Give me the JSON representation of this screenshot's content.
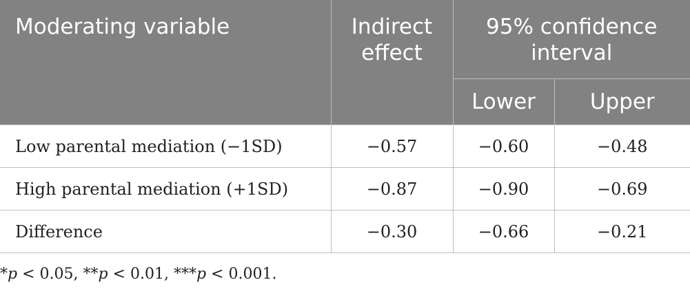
{
  "table": {
    "headers": {
      "moderating_variable": "Moderating variable",
      "indirect_effect": "Indirect effect",
      "confidence_interval": "95% confidence interval",
      "lower": "Lower",
      "upper": "Upper"
    },
    "rows": [
      {
        "label": "Low parental mediation (−1SD)",
        "indirect_effect": "−0.57",
        "lower": "−0.60",
        "upper": "−0.48"
      },
      {
        "label": "High parental mediation (+1SD)",
        "indirect_effect": "−0.87",
        "lower": "−0.90",
        "upper": "−0.69"
      },
      {
        "label": "Difference",
        "indirect_effect": "−0.30",
        "lower": "−0.66",
        "upper": "−0.21"
      }
    ]
  },
  "footnote": {
    "parts": [
      "*",
      "p",
      " < 0.05, **",
      "p",
      " < 0.01, ***",
      "p",
      " < 0.001."
    ]
  },
  "colors": {
    "header_background": "#828282",
    "header_text": "#ffffff",
    "border": "#bfbfbf"
  }
}
